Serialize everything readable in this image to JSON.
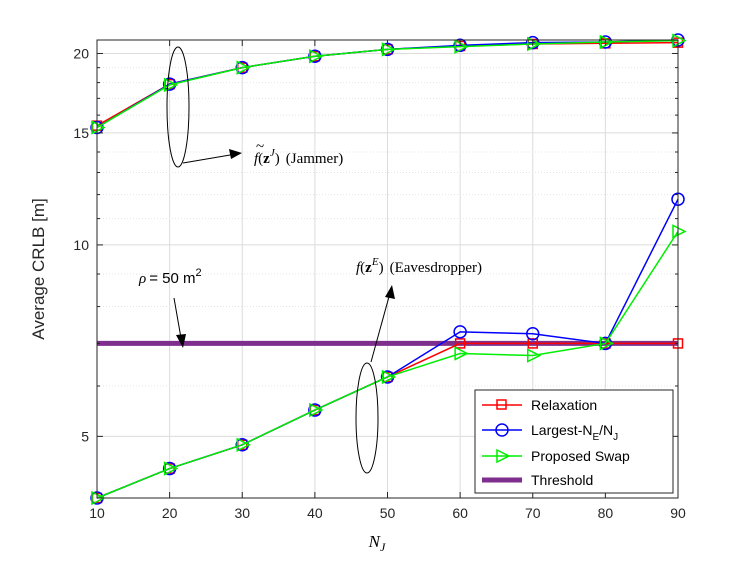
{
  "chart_data": {
    "type": "line",
    "title": "",
    "xlabel": "N",
    "xlabel_sub": "J",
    "ylabel": "Average CRLB [m]",
    "y_scale": "log",
    "xlim": [
      10,
      90
    ],
    "ylim": [
      4,
      21
    ],
    "x_ticks": [
      10,
      20,
      30,
      40,
      50,
      60,
      70,
      80,
      90
    ],
    "x_tick_labels": [
      "10",
      "20",
      "30",
      "40",
      "50",
      "60",
      "70",
      "80",
      "90"
    ],
    "y_ticks": [
      5,
      10,
      15,
      20
    ],
    "y_tick_labels": [
      "5",
      "10",
      "15",
      "20"
    ],
    "grid": true,
    "legend_position": "bottom-right",
    "x": [
      10,
      20,
      30,
      40,
      50,
      60,
      70,
      80,
      90
    ],
    "series": [
      {
        "name": "Relaxation",
        "color": "#ff0000",
        "marker": "square",
        "group": "Jammer",
        "values": [
          15.4,
          17.9,
          19.0,
          19.8,
          20.3,
          20.55,
          20.7,
          20.75,
          20.8
        ]
      },
      {
        "name": "Largest-N_E/N_J",
        "color": "#0000ff",
        "marker": "circle",
        "group": "Jammer",
        "values": [
          15.3,
          17.9,
          19.0,
          19.8,
          20.3,
          20.6,
          20.8,
          20.85,
          21.0
        ]
      },
      {
        "name": "Proposed Swap",
        "color": "#00ee00",
        "marker": "triangle-right",
        "group": "Jammer",
        "values": [
          15.3,
          17.85,
          19.0,
          19.8,
          20.3,
          20.5,
          20.7,
          20.85,
          20.95
        ]
      },
      {
        "name": "Relaxation",
        "color": "#ff0000",
        "marker": "square",
        "group": "Eavesdropper",
        "values": [
          4.0,
          4.45,
          4.85,
          5.5,
          6.2,
          7.0,
          7.0,
          7.0,
          7.0
        ]
      },
      {
        "name": "Largest-N_E/N_J",
        "color": "#0000ff",
        "marker": "circle",
        "group": "Eavesdropper",
        "values": [
          4.0,
          4.45,
          4.85,
          5.5,
          6.2,
          7.3,
          7.25,
          7.0,
          11.8
        ]
      },
      {
        "name": "Proposed Swap",
        "color": "#00ee00",
        "marker": "triangle-right",
        "group": "Eavesdropper",
        "values": [
          4.0,
          4.45,
          4.85,
          5.5,
          6.2,
          6.75,
          6.7,
          7.0,
          10.5
        ]
      },
      {
        "name": "Threshold",
        "color": "#7e2f8e",
        "marker": "none",
        "group": "Threshold",
        "values": [
          7.0,
          7.0,
          7.0,
          7.0,
          7.0,
          7.0,
          7.0,
          7.0,
          7.0
        ]
      }
    ],
    "legend": [
      {
        "label": "Relaxation",
        "color": "#ff0000",
        "marker": "square"
      },
      {
        "label_main": "Largest-N",
        "label_sub1": "E",
        "label_mid": "/N",
        "label_sub2": "J",
        "color": "#0000ff",
        "marker": "circle"
      },
      {
        "label": "Proposed Swap",
        "color": "#00ee00",
        "marker": "triangle-right"
      },
      {
        "label": "Threshold",
        "color": "#7e2f8e",
        "marker": "thick-line"
      }
    ],
    "annotations": {
      "jammer_func": "f",
      "jammer_vec": "z",
      "jammer_sup": "J",
      "jammer_text": "(Jammer)",
      "eaves_func": "f",
      "eaves_vec": "z",
      "eaves_sup": "E",
      "eaves_text": "(Eavesdropper)",
      "rho_symbol": "ρ",
      "rho_text": "= 50 m",
      "rho_sup": "2"
    }
  }
}
